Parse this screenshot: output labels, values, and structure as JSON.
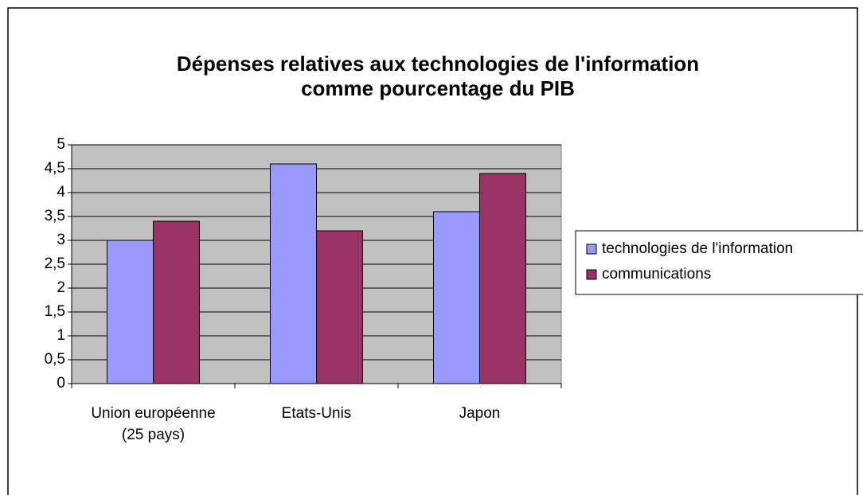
{
  "chart_data": {
    "type": "bar",
    "title": [
      "Dépenses relatives aux technologies de l'information",
      "comme pourcentage du PIB"
    ],
    "categories": [
      "Union européenne (25 pays)",
      "Etats-Unis",
      "Japon"
    ],
    "series": [
      {
        "name": "technologies de l'information",
        "color": "#9999ff",
        "values": [
          3,
          4.6,
          3.6
        ]
      },
      {
        "name": "communications",
        "color": "#993366",
        "values": [
          3.4,
          3.2,
          4.4
        ]
      }
    ],
    "ylim": [
      0,
      5
    ],
    "yticks": [
      0,
      {
        "value": 0.5,
        "label": "0,5"
      },
      1,
      {
        "value": 1.5,
        "label": "1,5"
      },
      2,
      {
        "value": 2.5,
        "label": "2,5"
      },
      3,
      {
        "value": 3.5,
        "label": "3,5"
      },
      4,
      {
        "value": 4.5,
        "label": "4,5"
      },
      5
    ],
    "grid": true,
    "plot_background": "#c0c0c0",
    "legend": "right"
  }
}
